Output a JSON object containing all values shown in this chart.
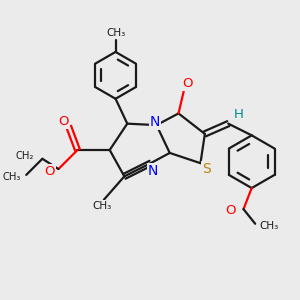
{
  "background_color": "#ebebeb",
  "bond_color": "#1a1a1a",
  "nitrogen_color": "#0000ff",
  "oxygen_color": "#ff0000",
  "sulfur_color": "#b8860b",
  "hydrogen_color": "#008b8b",
  "figsize": [
    3.0,
    3.0
  ],
  "dpi": 100,
  "xlim": [
    0,
    10
  ],
  "ylim": [
    0,
    10
  ]
}
